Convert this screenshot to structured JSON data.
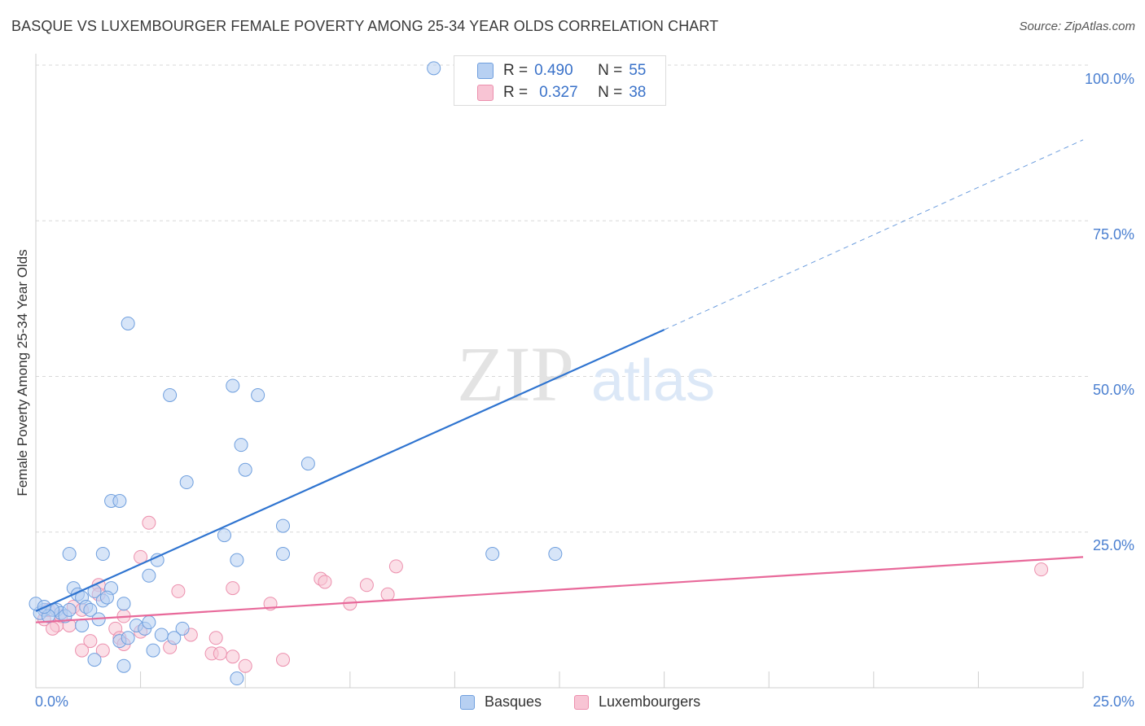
{
  "title": "BASQUE VS LUXEMBOURGER FEMALE POVERTY AMONG 25-34 YEAR OLDS CORRELATION CHART",
  "source": "Source: ZipAtlas.com",
  "watermark": {
    "zip": "ZIP",
    "atlas": "atlas"
  },
  "colors": {
    "basques_fill": "#b7d0f2",
    "basques_stroke": "#6f9fde",
    "basques_line": "#2f74d0",
    "lux_fill": "#f8c4d4",
    "lux_stroke": "#ec8fad",
    "lux_line": "#e8699a",
    "tick_text": "#4a7fd0",
    "grid": "#d8d8d8"
  },
  "stats_legend": {
    "rows": [
      {
        "r_label": "R =",
        "r_value": "0.490",
        "n_label": "N =",
        "n_value": "55"
      },
      {
        "r_label": "R =",
        "r_value": "0.327",
        "n_label": "N =",
        "n_value": "38"
      }
    ]
  },
  "chart_data": {
    "type": "scatter",
    "title": "BASQUE VS LUXEMBOURGER FEMALE POVERTY AMONG 25-34 YEAR OLDS CORRELATION CHART",
    "xlabel": "",
    "ylabel": "Female Poverty Among 25-34 Year Olds",
    "xlim": [
      0,
      25
    ],
    "ylim": [
      0,
      100
    ],
    "x_tick_labels": [
      "0.0%",
      "25.0%"
    ],
    "y_tick_labels": [
      "100.0%",
      "75.0%",
      "50.0%",
      "25.0%"
    ],
    "y_ticks": [
      100,
      75,
      50,
      25
    ],
    "grid": true,
    "legend": [
      "Basques",
      "Luxembourgers"
    ],
    "legend_position": "bottom",
    "series": [
      {
        "name": "Basques",
        "r": 0.49,
        "n": 55,
        "trend": {
          "x0": 0,
          "y0": 12.3,
          "x1": 15,
          "y1": 57.5,
          "dashed_to_x": 25,
          "dashed_to_y": 88
        },
        "points": [
          [
            9.5,
            99.5
          ],
          [
            2.2,
            58.5
          ],
          [
            3.2,
            47
          ],
          [
            4.7,
            48.5
          ],
          [
            5.3,
            47
          ],
          [
            4.9,
            39
          ],
          [
            5.0,
            35
          ],
          [
            3.6,
            33
          ],
          [
            6.5,
            36
          ],
          [
            1.8,
            30
          ],
          [
            2.0,
            30
          ],
          [
            5.9,
            26
          ],
          [
            4.5,
            24.5
          ],
          [
            0.8,
            21.5
          ],
          [
            1.6,
            21.5
          ],
          [
            2.9,
            20.5
          ],
          [
            4.8,
            20.5
          ],
          [
            5.9,
            21.5
          ],
          [
            10.9,
            21.5
          ],
          [
            12.4,
            21.5
          ],
          [
            2.7,
            18
          ],
          [
            0.9,
            16
          ],
          [
            1.4,
            15.5
          ],
          [
            1.8,
            16
          ],
          [
            1.0,
            15
          ],
          [
            1.1,
            14.5
          ],
          [
            1.6,
            14
          ],
          [
            1.7,
            14.5
          ],
          [
            2.1,
            13.5
          ],
          [
            1.2,
            13
          ],
          [
            1.3,
            12.5
          ],
          [
            0.5,
            12.5
          ],
          [
            0.6,
            12
          ],
          [
            0.2,
            12.5
          ],
          [
            0.4,
            12.5
          ],
          [
            0.1,
            12
          ],
          [
            0.3,
            11.5
          ],
          [
            0.7,
            11.5
          ],
          [
            1.1,
            10
          ],
          [
            2.4,
            10
          ],
          [
            2.6,
            9.5
          ],
          [
            2.7,
            10.5
          ],
          [
            3.5,
            9.5
          ],
          [
            3.3,
            8
          ],
          [
            2.0,
            7.5
          ],
          [
            2.2,
            8
          ],
          [
            2.8,
            6
          ],
          [
            1.4,
            4.5
          ],
          [
            2.1,
            3.5
          ],
          [
            4.8,
            1.5
          ],
          [
            0.0,
            13.5
          ],
          [
            0.2,
            13.0
          ],
          [
            0.8,
            12.5
          ],
          [
            1.5,
            11.0
          ],
          [
            3.0,
            8.5
          ]
        ]
      },
      {
        "name": "Luxembourgers",
        "r": 0.327,
        "n": 38,
        "trend": {
          "x0": 0,
          "y0": 10.5,
          "x1": 25,
          "y1": 21
        },
        "points": [
          [
            2.7,
            26.5
          ],
          [
            2.5,
            21
          ],
          [
            8.6,
            19.5
          ],
          [
            24.0,
            19
          ],
          [
            6.8,
            17.5
          ],
          [
            6.9,
            17
          ],
          [
            1.5,
            16.5
          ],
          [
            4.7,
            16
          ],
          [
            7.9,
            16.5
          ],
          [
            3.4,
            15.5
          ],
          [
            1.5,
            15
          ],
          [
            8.4,
            15
          ],
          [
            5.6,
            13.5
          ],
          [
            7.5,
            13.5
          ],
          [
            0.9,
            13
          ],
          [
            1.1,
            12.5
          ],
          [
            2.1,
            11.5
          ],
          [
            0.2,
            11
          ],
          [
            0.5,
            10
          ],
          [
            0.8,
            10
          ],
          [
            0.4,
            9.5
          ],
          [
            1.9,
            9.5
          ],
          [
            2.5,
            9
          ],
          [
            3.7,
            8.5
          ],
          [
            2.0,
            8
          ],
          [
            4.3,
            8
          ],
          [
            1.3,
            7.5
          ],
          [
            2.1,
            7
          ],
          [
            3.2,
            6.5
          ],
          [
            1.1,
            6
          ],
          [
            1.6,
            6
          ],
          [
            4.2,
            5.5
          ],
          [
            4.4,
            5.5
          ],
          [
            4.7,
            5
          ],
          [
            5.9,
            4.5
          ],
          [
            5.0,
            3.5
          ],
          [
            0.3,
            12.5
          ],
          [
            0.6,
            11.5
          ]
        ]
      }
    ]
  }
}
